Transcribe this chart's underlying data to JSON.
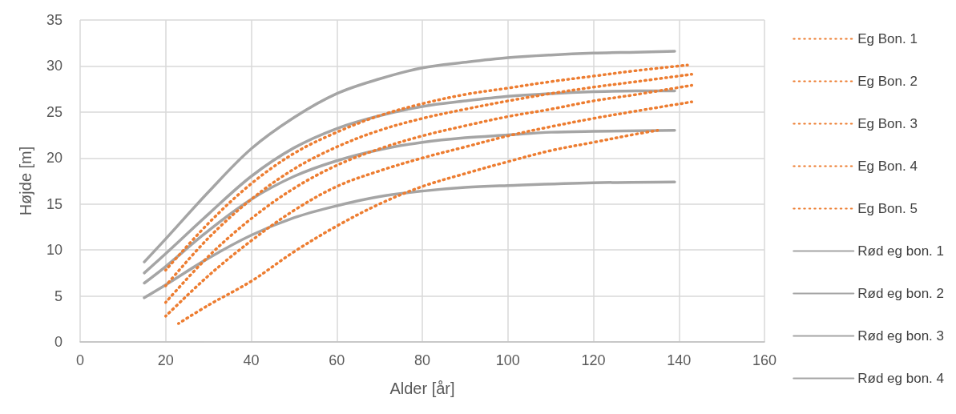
{
  "chart_data": {
    "type": "line",
    "xlabel": "Alder [år]",
    "ylabel": "Højde [m]",
    "xlim": [
      0,
      160
    ],
    "xticks": [
      0,
      20,
      40,
      60,
      80,
      100,
      120,
      140,
      160
    ],
    "ylim": [
      0,
      35
    ],
    "yticks": [
      0,
      5,
      10,
      15,
      20,
      25,
      30,
      35
    ],
    "grid": true,
    "legend": "right",
    "marker": "none",
    "series": [
      {
        "name": "Eg Bon. 1",
        "color": "#ed7d31",
        "line_style": "dotted",
        "x": [
          20,
          30,
          40,
          50,
          60,
          70,
          80,
          90,
          100,
          110,
          120,
          130,
          142
        ],
        "values": [
          7.8,
          12.9,
          17.2,
          20.5,
          22.8,
          24.6,
          25.9,
          26.9,
          27.6,
          28.3,
          28.9,
          29.5,
          30.1
        ]
      },
      {
        "name": "Eg Bon. 2",
        "color": "#ed7d31",
        "line_style": "dotted",
        "x": [
          20,
          30,
          40,
          50,
          60,
          70,
          80,
          90,
          100,
          110,
          120,
          130,
          143
        ],
        "values": [
          6.1,
          11.3,
          15.5,
          18.8,
          21.2,
          23.0,
          24.3,
          25.3,
          26.2,
          27.0,
          27.7,
          28.3,
          29.1
        ]
      },
      {
        "name": "Eg Bon. 3",
        "color": "#ed7d31",
        "line_style": "dotted",
        "x": [
          20,
          30,
          40,
          50,
          60,
          70,
          80,
          90,
          100,
          110,
          120,
          130,
          143
        ],
        "values": [
          4.3,
          9.3,
          13.4,
          16.7,
          19.2,
          21.0,
          22.4,
          23.5,
          24.5,
          25.3,
          26.2,
          26.9,
          27.9
        ]
      },
      {
        "name": "Eg Bon. 4",
        "color": "#ed7d31",
        "line_style": "dotted",
        "x": [
          20,
          30,
          40,
          50,
          60,
          70,
          80,
          90,
          100,
          110,
          120,
          130,
          143
        ],
        "values": [
          2.8,
          7.2,
          11.0,
          14.3,
          16.9,
          18.6,
          20.0,
          21.2,
          22.4,
          23.4,
          24.3,
          25.1,
          26.1
        ]
      },
      {
        "name": "Eg Bon. 5",
        "color": "#ed7d31",
        "line_style": "dotted",
        "x": [
          23,
          30,
          40,
          50,
          60,
          70,
          80,
          90,
          100,
          110,
          120,
          130,
          135
        ],
        "values": [
          2.0,
          4.0,
          6.6,
          9.8,
          12.6,
          15.0,
          16.9,
          18.3,
          19.6,
          20.8,
          21.7,
          22.6,
          23.0
        ]
      },
      {
        "name": "Rød eg bon. 1",
        "color": "#a5a5a5",
        "line_style": "solid",
        "x": [
          15,
          20,
          30,
          40,
          50,
          60,
          70,
          80,
          90,
          100,
          110,
          120,
          130,
          139
        ],
        "values": [
          8.7,
          11.2,
          16.3,
          21.0,
          24.4,
          27.0,
          28.6,
          29.8,
          30.4,
          30.9,
          31.2,
          31.4,
          31.5,
          31.6
        ]
      },
      {
        "name": "Rød eg bon. 2",
        "color": "#a5a5a5",
        "line_style": "solid",
        "x": [
          15,
          20,
          30,
          40,
          50,
          60,
          70,
          80,
          90,
          100,
          110,
          120,
          130,
          139
        ],
        "values": [
          7.5,
          9.6,
          13.9,
          18.0,
          21.1,
          23.2,
          24.6,
          25.6,
          26.2,
          26.7,
          27.0,
          27.2,
          27.3,
          27.3
        ]
      },
      {
        "name": "Rød eg bon. 3",
        "color": "#a5a5a5",
        "line_style": "solid",
        "x": [
          15,
          20,
          30,
          40,
          50,
          60,
          70,
          80,
          90,
          100,
          110,
          120,
          139
        ],
        "values": [
          6.4,
          8.2,
          12.1,
          15.5,
          18.0,
          19.7,
          20.9,
          21.7,
          22.2,
          22.5,
          22.8,
          22.9,
          23.0
        ]
      },
      {
        "name": "Rød eg bon. 4",
        "color": "#a5a5a5",
        "line_style": "solid",
        "x": [
          15,
          20,
          30,
          40,
          50,
          60,
          70,
          80,
          90,
          100,
          120,
          139
        ],
        "values": [
          4.8,
          6.2,
          9.1,
          11.6,
          13.5,
          14.8,
          15.8,
          16.4,
          16.8,
          17.0,
          17.3,
          17.4
        ]
      }
    ]
  }
}
